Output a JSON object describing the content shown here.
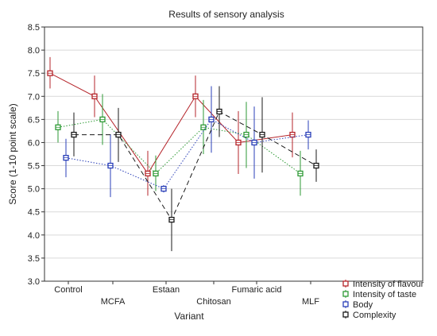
{
  "chart_data": {
    "type": "line",
    "title": "Results of sensory analysis",
    "xlabel": "Variant",
    "ylabel": "Score (1-10 point scale)",
    "ylim": [
      3.0,
      8.5
    ],
    "yticks": [
      "3.0",
      "3.5",
      "4.0",
      "4.5",
      "5.0",
      "5.5",
      "6.0",
      "6.5",
      "7.0",
      "7.5",
      "8.0",
      "8.5"
    ],
    "categories": [
      "Control",
      "MCFA",
      "Estaan",
      "Chitosan",
      "Fumaric acid",
      "MLF"
    ],
    "grid": true,
    "legend_position": "bottom-right",
    "series": [
      {
        "name": "Intensity of flavour",
        "color": "#b5252b",
        "dash": "solid",
        "values": [
          7.5,
          7.0,
          5.33,
          7.0,
          6.0,
          6.17
        ],
        "err_low": [
          7.17,
          6.55,
          4.85,
          6.55,
          5.32,
          5.68
        ],
        "err_high": [
          7.85,
          7.45,
          5.82,
          7.45,
          6.68,
          6.65
        ]
      },
      {
        "name": "Intensity of taste",
        "color": "#2e9a35",
        "dash": "dotted",
        "values": [
          6.33,
          6.5,
          5.33,
          6.33,
          6.17,
          5.33
        ],
        "err_low": [
          6.0,
          5.95,
          4.95,
          5.75,
          5.45,
          4.85
        ],
        "err_high": [
          6.68,
          7.05,
          5.72,
          6.92,
          6.88,
          5.82
        ]
      },
      {
        "name": "Body",
        "color": "#2a3fb8",
        "dash": "dotted",
        "values": [
          5.67,
          5.5,
          5.0,
          6.5,
          6.0,
          6.17
        ],
        "err_low": [
          5.25,
          4.82,
          4.92,
          5.78,
          5.22,
          5.85
        ],
        "err_high": [
          6.08,
          6.18,
          5.08,
          7.22,
          6.78,
          6.48
        ]
      },
      {
        "name": "Complexity",
        "color": "#1a1a1a",
        "dash": "dashed",
        "values": [
          6.17,
          6.17,
          4.33,
          6.67,
          6.17,
          5.5
        ],
        "err_low": [
          5.7,
          5.58,
          3.65,
          6.12,
          5.35,
          5.15
        ],
        "err_high": [
          6.65,
          6.75,
          5.0,
          7.22,
          6.98,
          5.85
        ]
      }
    ]
  }
}
